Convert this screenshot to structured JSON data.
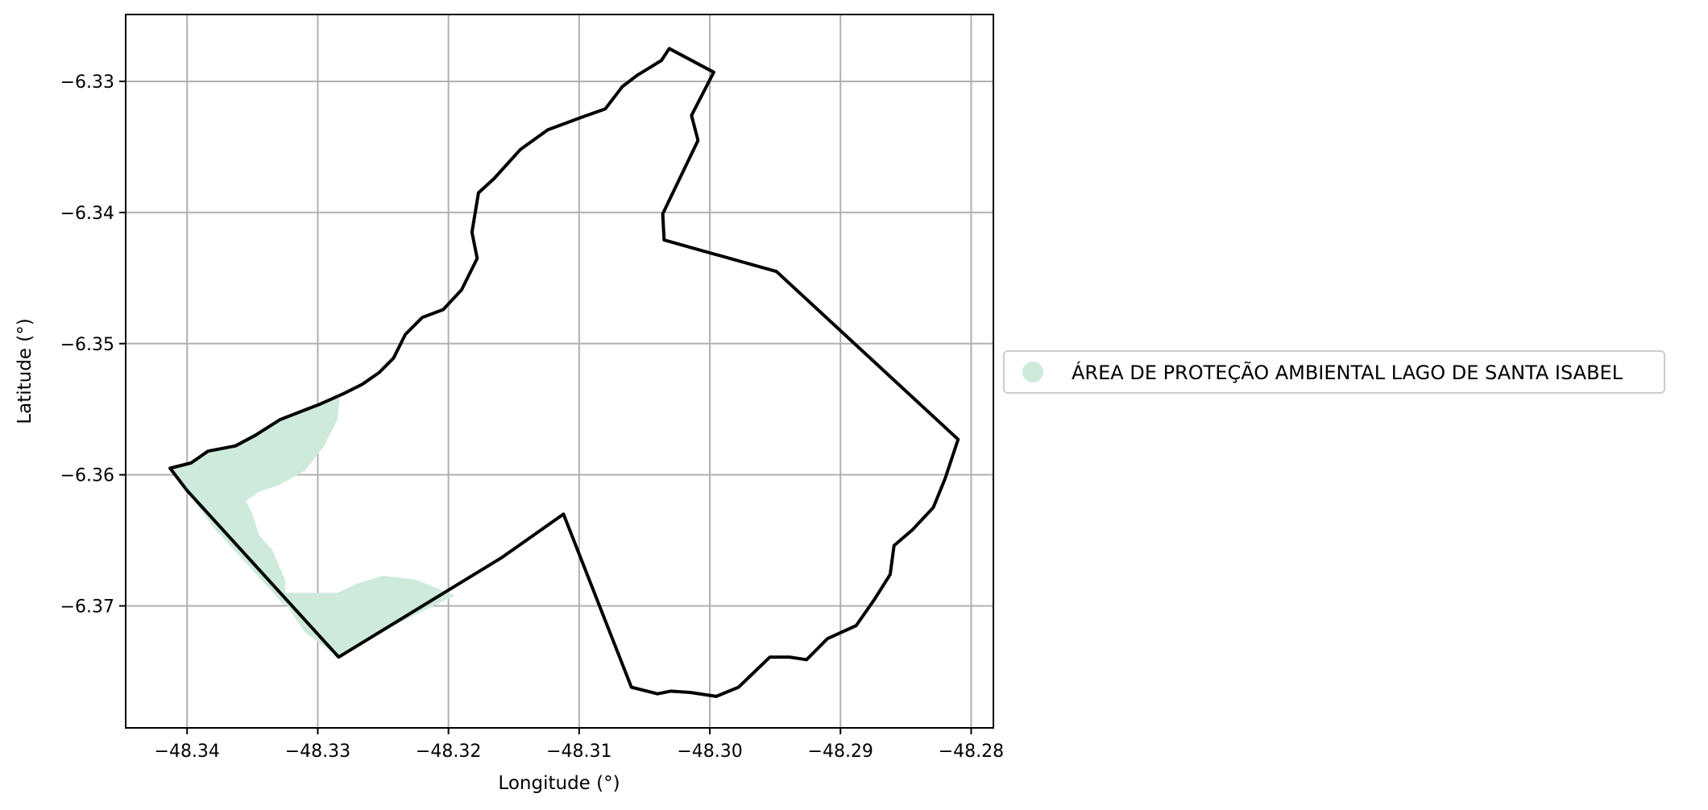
{
  "chart_data": {
    "type": "map",
    "xlabel": "Longitude (°)",
    "ylabel": "Latitude (°)",
    "xlim": [
      -48.3447,
      -48.2783
    ],
    "ylim": [
      -6.3793,
      -6.3249
    ],
    "grid": true,
    "x_ticks": [
      -48.34,
      -48.33,
      -48.32,
      -48.31,
      -48.3,
      -48.29,
      -48.28
    ],
    "x_tick_labels": [
      "−48.34",
      "−48.33",
      "−48.32",
      "−48.31",
      "−48.30",
      "−48.29",
      "−48.28"
    ],
    "y_ticks": [
      -6.33,
      -6.34,
      -6.35,
      -6.36,
      -6.37
    ],
    "y_tick_labels": [
      "−6.33",
      "−6.34",
      "−6.35",
      "−6.36",
      "−6.37"
    ],
    "legend": {
      "placement": "right-center",
      "entries": [
        {
          "label": "ÁREA DE PROTEÇÃO AMBIENTAL LAGO DE SANTA ISABEL",
          "color": "#cdeadb"
        }
      ]
    },
    "layers": [
      {
        "name": "protected-area",
        "color": "#cdeadb",
        "polygons": [
          [
            [
              -48.3413,
              -6.3595
            ],
            [
              -48.3397,
              -6.3591
            ],
            [
              -48.3384,
              -6.3582
            ],
            [
              -48.3363,
              -6.3578
            ],
            [
              -48.3348,
              -6.357
            ],
            [
              -48.3329,
              -6.3558
            ],
            [
              -48.3311,
              -6.3551
            ],
            [
              -48.3298,
              -6.3546
            ],
            [
              -48.3283,
              -6.354
            ],
            [
              -48.3285,
              -6.3558
            ],
            [
              -48.3295,
              -6.3578
            ],
            [
              -48.331,
              -6.3597
            ],
            [
              -48.333,
              -6.3608
            ],
            [
              -48.3345,
              -6.3613
            ],
            [
              -48.3355,
              -6.362
            ],
            [
              -48.335,
              -6.363
            ],
            [
              -48.3345,
              -6.3646
            ],
            [
              -48.3335,
              -6.3657
            ],
            [
              -48.3325,
              -6.368
            ],
            [
              -48.3325,
              -6.37
            ],
            [
              -48.3345,
              -6.3678
            ],
            [
              -48.338,
              -6.364
            ],
            [
              -48.34,
              -6.3612
            ]
          ],
          [
            [
              -48.333,
              -6.369
            ],
            [
              -48.3305,
              -6.369
            ],
            [
              -48.3285,
              -6.369
            ],
            [
              -48.327,
              -6.3683
            ],
            [
              -48.325,
              -6.3677
            ],
            [
              -48.3225,
              -6.368
            ],
            [
              -48.3205,
              -6.3688
            ],
            [
              -48.3195,
              -6.3692
            ],
            [
              -48.324,
              -6.3714
            ],
            [
              -48.3284,
              -6.3739
            ],
            [
              -48.331,
              -6.372
            ]
          ]
        ]
      },
      {
        "name": "municipal-boundary",
        "color": "#000000",
        "polygons": [
          [
            [
              -48.3413,
              -6.3595
            ],
            [
              -48.3397,
              -6.3591
            ],
            [
              -48.3384,
              -6.3582
            ],
            [
              -48.3363,
              -6.3578
            ],
            [
              -48.3348,
              -6.357
            ],
            [
              -48.3329,
              -6.3558
            ],
            [
              -48.3311,
              -6.3551
            ],
            [
              -48.3298,
              -6.3546
            ],
            [
              -48.328,
              -6.3538
            ],
            [
              -48.3266,
              -6.3531
            ],
            [
              -48.3253,
              -6.3522
            ],
            [
              -48.3242,
              -6.3511
            ],
            [
              -48.3233,
              -6.3493
            ],
            [
              -48.322,
              -6.348
            ],
            [
              -48.3204,
              -6.3474
            ],
            [
              -48.319,
              -6.3459
            ],
            [
              -48.3178,
              -6.3435
            ],
            [
              -48.3182,
              -6.3415
            ],
            [
              -48.3177,
              -6.3385
            ],
            [
              -48.3165,
              -6.3374
            ],
            [
              -48.3145,
              -6.3352
            ],
            [
              -48.3124,
              -6.3337
            ],
            [
              -48.3097,
              -6.3327
            ],
            [
              -48.308,
              -6.3321
            ],
            [
              -48.3067,
              -6.3304
            ],
            [
              -48.3055,
              -6.3295
            ],
            [
              -48.3045,
              -6.3289
            ],
            [
              -48.3037,
              -6.3284
            ],
            [
              -48.3031,
              -6.3275
            ],
            [
              -48.2997,
              -6.3293
            ],
            [
              -48.3014,
              -6.3326
            ],
            [
              -48.3009,
              -6.3345
            ],
            [
              -48.3036,
              -6.3401
            ],
            [
              -48.3035,
              -6.3421
            ],
            [
              -48.2949,
              -6.3445
            ],
            [
              -48.281,
              -6.3573
            ],
            [
              -48.282,
              -6.3603
            ],
            [
              -48.2829,
              -6.3625
            ],
            [
              -48.2845,
              -6.3642
            ],
            [
              -48.2859,
              -6.3654
            ],
            [
              -48.2862,
              -6.3676
            ],
            [
              -48.2874,
              -6.3695
            ],
            [
              -48.2888,
              -6.3715
            ],
            [
              -48.291,
              -6.3725
            ],
            [
              -48.2926,
              -6.3741
            ],
            [
              -48.2939,
              -6.3739
            ],
            [
              -48.2954,
              -6.3739
            ],
            [
              -48.2978,
              -6.3762
            ],
            [
              -48.2995,
              -6.3769
            ],
            [
              -48.3015,
              -6.3766
            ],
            [
              -48.303,
              -6.3765
            ],
            [
              -48.304,
              -6.3767
            ],
            [
              -48.306,
              -6.3762
            ],
            [
              -48.3112,
              -6.363
            ],
            [
              -48.3159,
              -6.3663
            ],
            [
              -48.3284,
              -6.3739
            ],
            [
              -48.34,
              -6.3612
            ]
          ]
        ]
      }
    ]
  }
}
